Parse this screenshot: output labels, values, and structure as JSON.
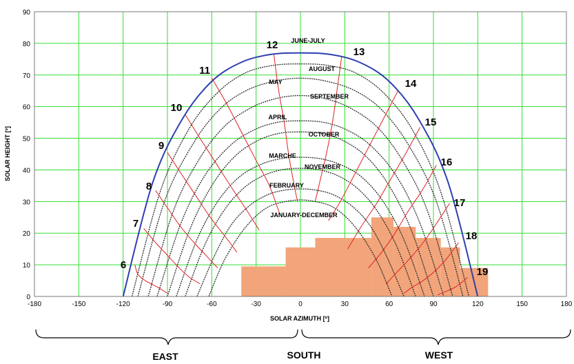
{
  "chart_data": {
    "type": "line",
    "xlabel": "SOLAR AZIMUTH [º]",
    "ylabel": "SOLAR HEIGHT [º]",
    "xlim": [
      -180,
      180
    ],
    "ylim": [
      0,
      90
    ],
    "xticks": [
      -180,
      -150,
      -120,
      -90,
      -60,
      -30,
      0,
      30,
      60,
      90,
      120,
      150,
      180
    ],
    "yticks": [
      0,
      10,
      20,
      30,
      40,
      50,
      60,
      70,
      80,
      90
    ],
    "grid": true,
    "colors": {
      "grid": "#33dd33",
      "sun_path": "#2a2a2a",
      "summer_path": "#2f3fb0",
      "hour_lines": "#e02020",
      "obstruction": "#f2a57a"
    },
    "series": [
      {
        "name": "JUNE-JULY",
        "x": [
          -120,
          -100,
          -80,
          -60,
          -40,
          -20,
          0,
          20,
          40,
          60,
          80,
          100,
          120
        ],
        "y": [
          0,
          36,
          56,
          68,
          74,
          76.5,
          77,
          76.5,
          74,
          68,
          56,
          36,
          0
        ]
      },
      {
        "name": "AUGUST",
        "x": [
          -114,
          -95,
          -76,
          -57,
          -38,
          -19,
          0,
          19,
          38,
          57,
          76,
          95,
          114
        ],
        "y": [
          0,
          33,
          52.5,
          64,
          70.5,
          73,
          73.5,
          73,
          70.5,
          64,
          52.5,
          33,
          0
        ]
      },
      {
        "name": "MAY",
        "x": [
          -110,
          -92,
          -73,
          -55,
          -37,
          -18,
          0,
          18,
          37,
          55,
          73,
          92,
          110
        ],
        "y": [
          0,
          30,
          48,
          59,
          65,
          68,
          69,
          68,
          65,
          59,
          48,
          30,
          0
        ]
      },
      {
        "name": "SEPTEMBER",
        "x": [
          -103,
          -86,
          -69,
          -52,
          -34,
          -17,
          0,
          17,
          34,
          52,
          69,
          86,
          103
        ],
        "y": [
          0,
          27,
          43,
          53.5,
          59.5,
          62.5,
          63.5,
          62.5,
          59.5,
          53.5,
          43,
          27,
          0
        ]
      },
      {
        "name": "APRIL",
        "x": [
          -97,
          -81,
          -65,
          -48,
          -32,
          -16,
          0,
          16,
          32,
          48,
          65,
          81,
          97
        ],
        "y": [
          0,
          23,
          38,
          47.5,
          52.5,
          55,
          55.5,
          55,
          52.5,
          47.5,
          38,
          23,
          0
        ]
      },
      {
        "name": "OCTOBER",
        "x": [
          -90,
          -75,
          -60,
          -45,
          -30,
          -15,
          0,
          15,
          30,
          45,
          60,
          75,
          90
        ],
        "y": [
          0,
          21,
          35,
          44,
          49,
          51.5,
          52,
          51.5,
          49,
          44,
          35,
          21,
          0
        ]
      },
      {
        "name": "MARCHE",
        "x": [
          -84,
          -70,
          -56,
          -42,
          -28,
          -14,
          0,
          14,
          28,
          42,
          56,
          70,
          84
        ],
        "y": [
          0,
          18,
          30,
          37.5,
          41.5,
          43.5,
          44,
          43.5,
          41.5,
          37.5,
          30,
          18,
          0
        ]
      },
      {
        "name": "NOVEMBER",
        "x": [
          -78,
          -65,
          -52,
          -39,
          -26,
          -13,
          0,
          13,
          26,
          39,
          52,
          65,
          78
        ],
        "y": [
          0,
          16,
          27,
          34,
          38,
          40,
          40.5,
          40,
          38,
          34,
          27,
          16,
          0
        ]
      },
      {
        "name": "FEBRUARY",
        "x": [
          -70,
          -58,
          -47,
          -35,
          -23,
          -12,
          0,
          12,
          23,
          35,
          47,
          58,
          70
        ],
        "y": [
          0,
          13,
          22.5,
          28.5,
          32,
          33.5,
          34,
          33.5,
          32,
          28.5,
          22.5,
          13,
          0
        ]
      },
      {
        "name": "JANUARY-DECEMBER",
        "x": [
          -62,
          -52,
          -41,
          -31,
          -21,
          -10,
          0,
          10,
          21,
          31,
          41,
          52,
          62
        ],
        "y": [
          0,
          11,
          19.5,
          25,
          28.5,
          30,
          30.5,
          30,
          28.5,
          25,
          19.5,
          11,
          0
        ]
      }
    ],
    "hour_lines": [
      {
        "name": "6",
        "x": [
          -112,
          -110,
          -105,
          -97,
          -90
        ],
        "y": [
          10,
          7,
          5,
          3,
          1
        ]
      },
      {
        "name": "7",
        "x": [
          -106,
          -98,
          -90,
          -82,
          -75,
          -68
        ],
        "y": [
          21.5,
          17,
          13,
          9,
          6,
          4
        ]
      },
      {
        "name": "8",
        "x": [
          -98,
          -90,
          -81,
          -72,
          -64,
          -56
        ],
        "y": [
          33.5,
          28,
          22,
          17,
          13,
          9
        ]
      },
      {
        "name": "9",
        "x": [
          -90,
          -81,
          -71,
          -61,
          -51,
          -43
        ],
        "y": [
          45.5,
          39,
          32,
          25,
          19,
          14
        ]
      },
      {
        "name": "10",
        "x": [
          -78,
          -68,
          -57,
          -46,
          -36,
          -28
        ],
        "y": [
          57.5,
          50,
          42,
          34,
          27,
          21
        ]
      },
      {
        "name": "11",
        "x": [
          -60,
          -50,
          -40,
          -30,
          -21,
          -14
        ],
        "y": [
          69,
          61,
          52,
          43,
          35,
          26
        ]
      },
      {
        "name": "12",
        "x": [
          -18,
          -15,
          -11,
          -8,
          -5,
          -2
        ],
        "y": [
          76.5,
          66,
          55,
          45,
          37,
          30
        ]
      },
      {
        "name": "13",
        "x": [
          28,
          25,
          22,
          18,
          14,
          10
        ],
        "y": [
          76,
          66,
          56,
          46,
          38,
          30
        ]
      },
      {
        "name": "14",
        "x": [
          66,
          56,
          46,
          36,
          27,
          19
        ],
        "y": [
          65,
          56,
          47,
          38,
          30,
          24
        ]
      },
      {
        "name": "15",
        "x": [
          81,
          71,
          61,
          51,
          41,
          32
        ],
        "y": [
          53.5,
          45,
          37,
          29,
          22,
          15
        ]
      },
      {
        "name": "16",
        "x": [
          92,
          83,
          73,
          64,
          55,
          46
        ],
        "y": [
          41.5,
          34,
          27,
          20,
          14,
          9
        ]
      },
      {
        "name": "17",
        "x": [
          101,
          92,
          83,
          74,
          66,
          58
        ],
        "y": [
          29.5,
          23,
          17,
          12,
          8,
          4
        ]
      },
      {
        "name": "18",
        "x": [
          107,
          99,
          91,
          83,
          76,
          70
        ],
        "y": [
          17,
          12,
          8,
          5,
          3,
          1
        ]
      },
      {
        "name": "19",
        "x": [
          113,
          108,
          103,
          98,
          93
        ],
        "y": [
          6,
          4,
          2.5,
          1.5,
          0.5
        ]
      }
    ],
    "obstruction": [
      {
        "x0": -40,
        "x1": -10,
        "height": 9.5
      },
      {
        "x0": -10,
        "x1": 10,
        "height": 15.5
      },
      {
        "x0": 10,
        "x1": 48,
        "height": 18.5
      },
      {
        "x0": 48,
        "x1": 63,
        "height": 25
      },
      {
        "x0": 63,
        "x1": 78,
        "height": 22
      },
      {
        "x0": 78,
        "x1": 95,
        "height": 18.5
      },
      {
        "x0": 95,
        "x1": 108,
        "height": 15.5
      },
      {
        "x0": 108,
        "x1": 127,
        "height": 9
      }
    ]
  },
  "labels": {
    "months": [
      "JUNE-JULY",
      "AUGUST",
      "MAY",
      "SEPTEMBER",
      "APRIL",
      "OCTOBER",
      "MARCHE",
      "NOVEMBER",
      "FEBRUARY",
      "JANUARY-DECEMBER"
    ],
    "hours": [
      "6",
      "7",
      "8",
      "9",
      "10",
      "11",
      "12",
      "13",
      "14",
      "15",
      "16",
      "17",
      "18",
      "19"
    ],
    "regions": {
      "east": "EAST",
      "south": "SOUTH",
      "west": "WEST"
    }
  }
}
